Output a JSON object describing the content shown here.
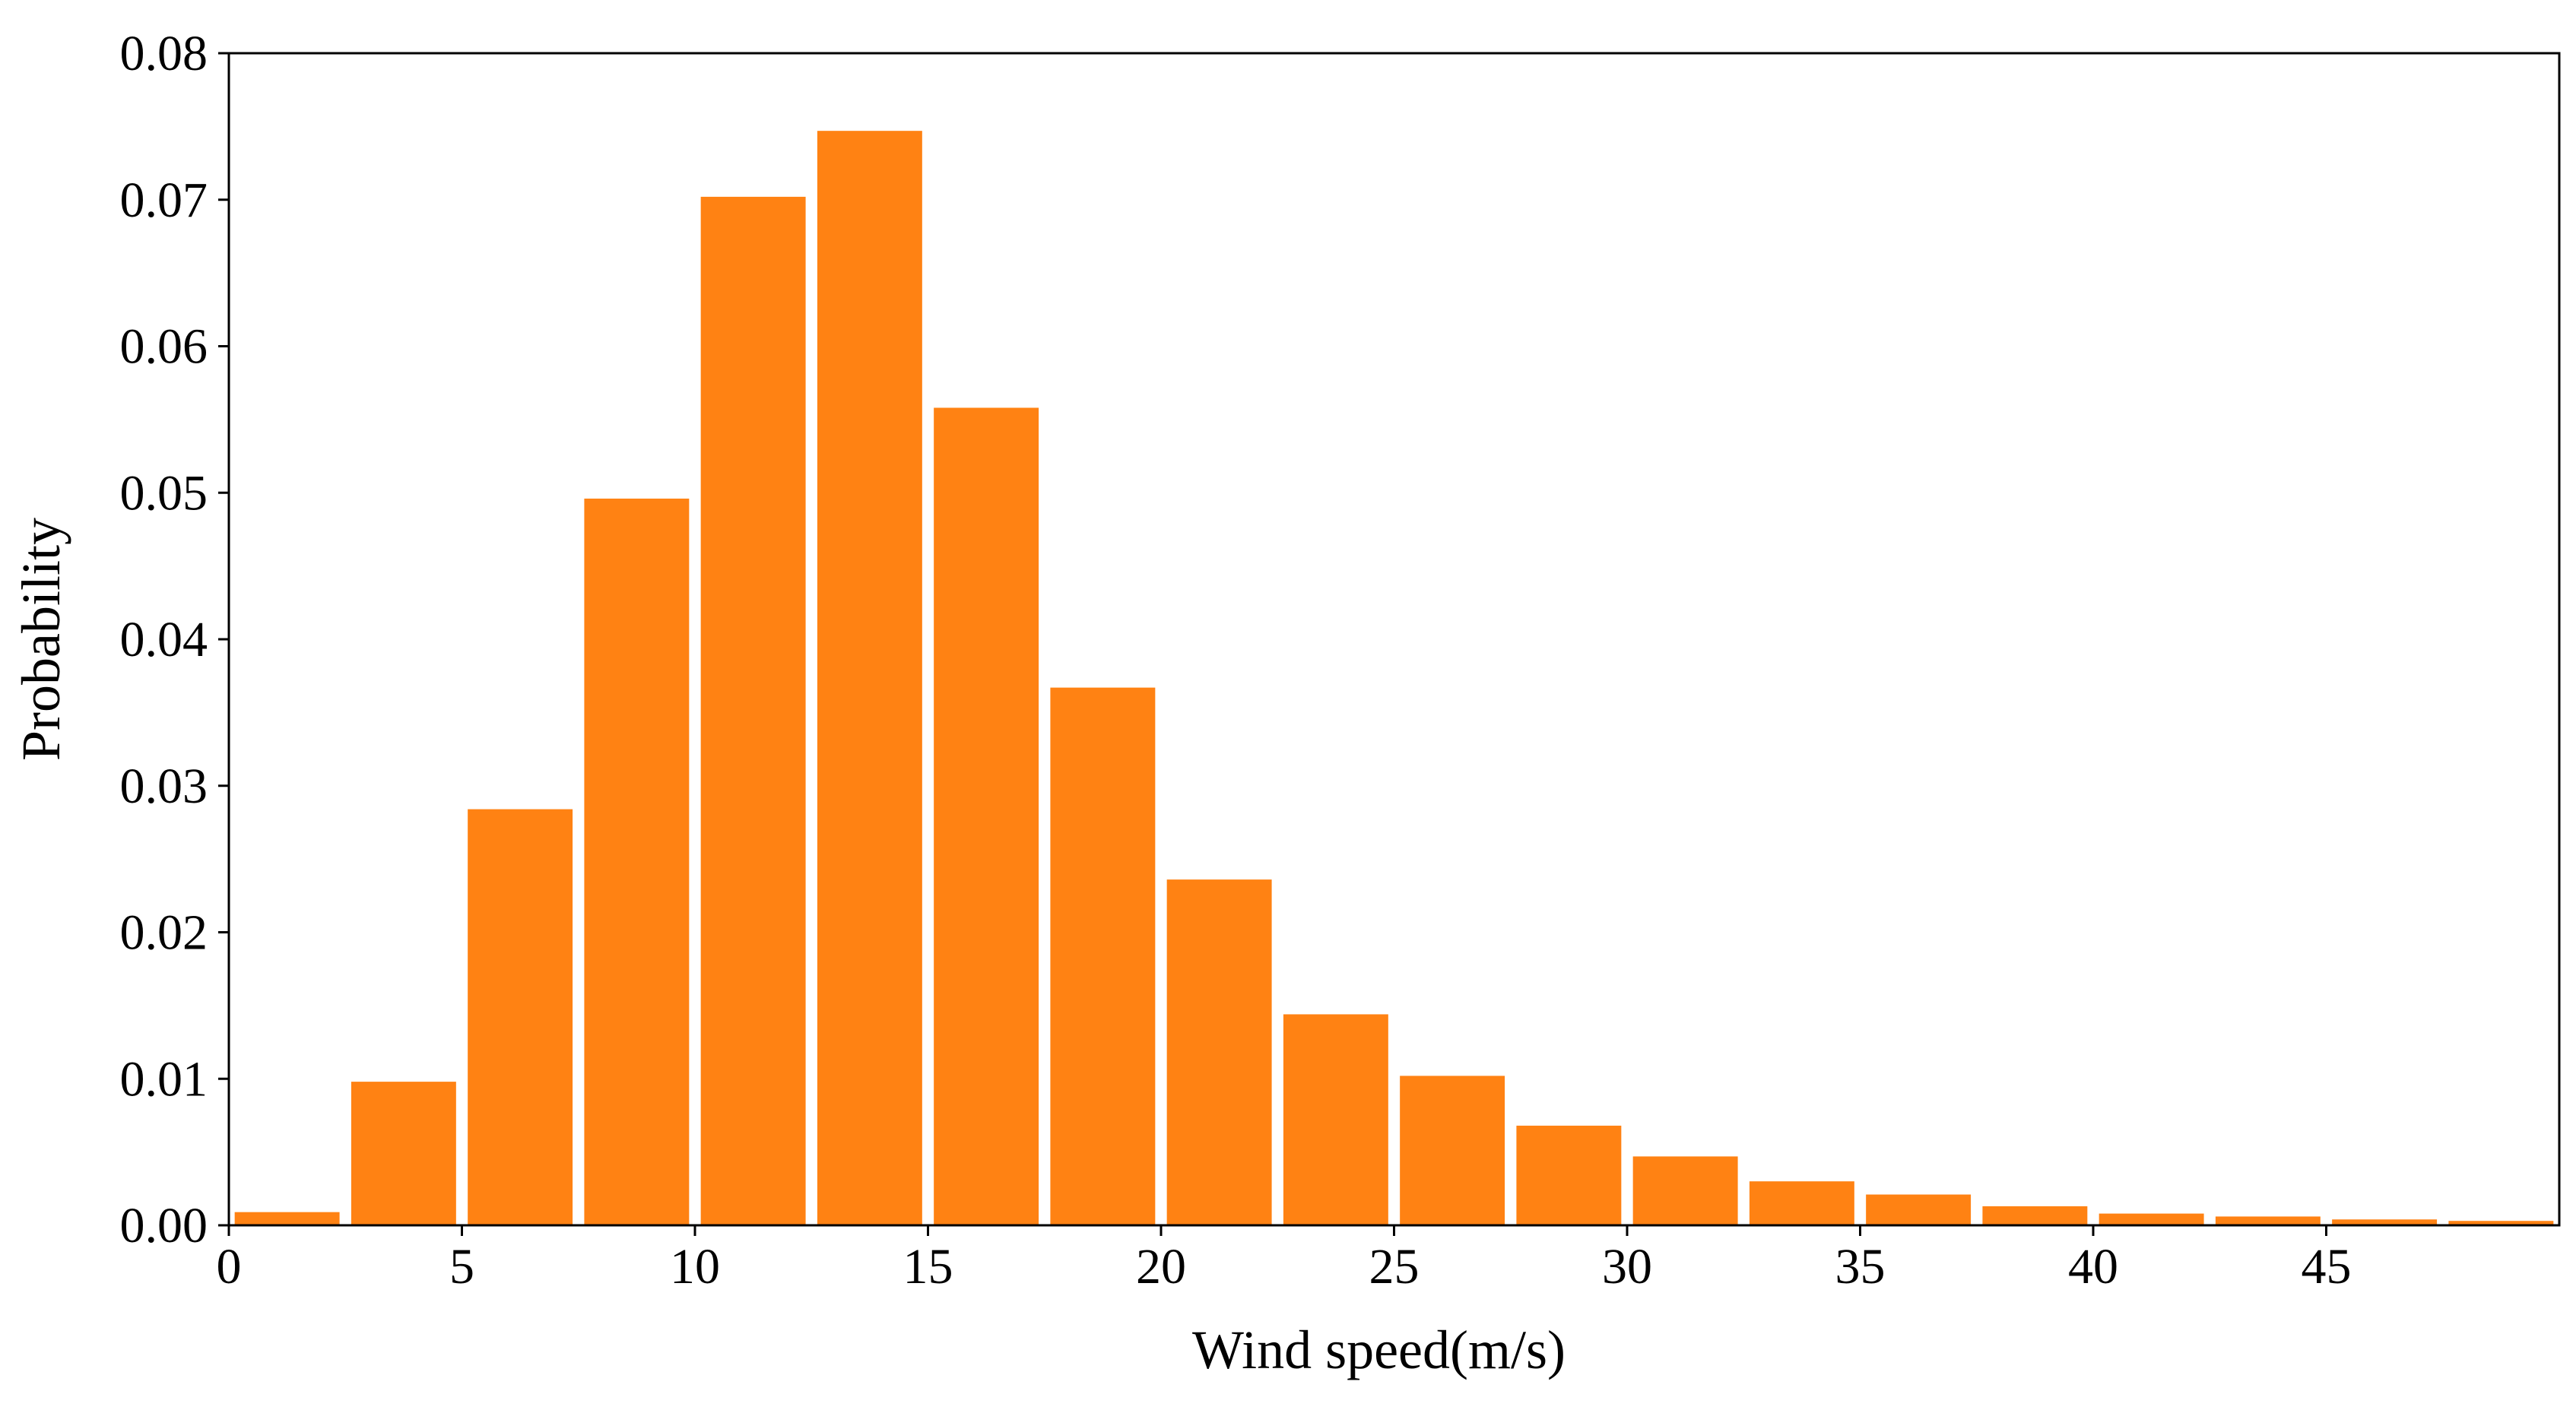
{
  "chart_data": {
    "type": "bar",
    "title": "",
    "xlabel": "Wind speed(m/s)",
    "ylabel": "Probability",
    "bin_width": 2.5,
    "x": [
      1.25,
      3.75,
      6.25,
      8.75,
      11.25,
      13.75,
      16.25,
      18.75,
      21.25,
      23.75,
      26.25,
      28.75,
      31.25,
      33.75,
      36.25,
      38.75,
      41.25,
      43.75,
      46.25,
      48.75
    ],
    "values": [
      0.0009,
      0.0098,
      0.0284,
      0.0496,
      0.0702,
      0.0747,
      0.0558,
      0.0367,
      0.0236,
      0.0144,
      0.0102,
      0.0068,
      0.0047,
      0.003,
      0.0021,
      0.0013,
      0.0008,
      0.0006,
      0.0004,
      0.0003
    ],
    "xlim": [
      0,
      50
    ],
    "ylim": [
      0,
      0.08
    ],
    "xticks": [
      0,
      5,
      10,
      15,
      20,
      25,
      30,
      35,
      40,
      45
    ],
    "xtick_labels": [
      "0",
      "5",
      "10",
      "15",
      "20",
      "25",
      "30",
      "35",
      "40",
      "45"
    ],
    "yticks": [
      0,
      0.01,
      0.02,
      0.03,
      0.04,
      0.05,
      0.06,
      0.07,
      0.08
    ],
    "ytick_labels": [
      "0.00",
      "0.01",
      "0.02",
      "0.03",
      "0.04",
      "0.05",
      "0.06",
      "0.07",
      "0.08"
    ],
    "grid": false,
    "bar_color": "#ff8213"
  }
}
